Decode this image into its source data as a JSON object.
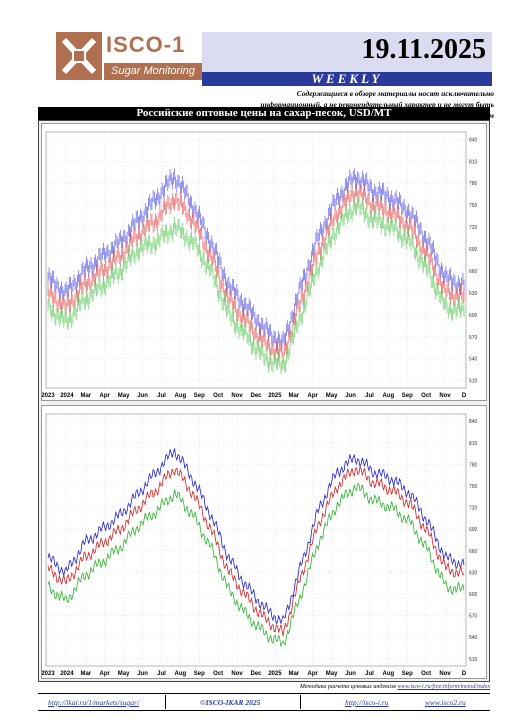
{
  "header": {
    "logo_name": "ISCO-1",
    "logo_sub": "Sugar Monitoring",
    "date": "19.11.2025",
    "weekly": "WEEKLY",
    "disclaimer": "Содержащиеся в обзоре материалы носят исключительно информационный, а не рекомендательный характер и не могут быть переданы третьим лицам"
  },
  "section_title": "Российские оптовые цены на сахар-песок, USD/MT",
  "chart_data": [
    {
      "type": "line",
      "panel": "top",
      "style": "bands",
      "x_labels": [
        "2023",
        "2024",
        "Mar",
        "Apr",
        "May",
        "Jun",
        "Jul",
        "Aug",
        "Sep",
        "Oct",
        "Nov",
        "Dec",
        "2025",
        "Mar",
        "Apr",
        "May",
        "Jun",
        "Jul",
        "Aug",
        "Sep",
        "Oct",
        "Nov",
        "D"
      ],
      "y_ticks": [
        510,
        540,
        570,
        600,
        630,
        660,
        690,
        720,
        750,
        780,
        810,
        840
      ],
      "ylim": [
        500,
        850
      ],
      "series": [
        {
          "color": "#3030e0",
          "values": [
            650,
            630,
            660,
            680,
            700,
            730,
            760,
            790,
            750,
            700,
            640,
            610,
            580,
            560,
            640,
            710,
            760,
            790,
            770,
            760,
            740,
            700,
            650,
            640
          ]
        },
        {
          "color": "#e03030",
          "values": [
            630,
            610,
            640,
            660,
            680,
            710,
            730,
            760,
            730,
            680,
            620,
            590,
            560,
            545,
            620,
            690,
            740,
            770,
            750,
            740,
            720,
            680,
            630,
            625
          ]
        },
        {
          "color": "#40c040",
          "values": [
            610,
            590,
            620,
            640,
            660,
            690,
            700,
            720,
            700,
            660,
            600,
            570,
            540,
            530,
            600,
            670,
            720,
            750,
            730,
            720,
            700,
            660,
            610,
            605
          ]
        }
      ]
    },
    {
      "type": "line",
      "panel": "bottom",
      "style": "lines",
      "x_labels": [
        "2023",
        "2024",
        "Mar",
        "Apr",
        "May",
        "Jun",
        "Jul",
        "Aug",
        "Sep",
        "Oct",
        "Nov",
        "Dec",
        "2025",
        "Mar",
        "Apr",
        "May",
        "Jun",
        "Jul",
        "Aug",
        "Sep",
        "Oct",
        "Nov",
        "D"
      ],
      "y_ticks": [
        510,
        540,
        570,
        600,
        630,
        660,
        690,
        720,
        750,
        780,
        810,
        840
      ],
      "ylim": [
        500,
        850
      ],
      "series": [
        {
          "color": "#2020d0",
          "values": [
            650,
            630,
            670,
            690,
            710,
            740,
            770,
            800,
            760,
            710,
            650,
            610,
            580,
            560,
            640,
            720,
            770,
            790,
            770,
            760,
            740,
            700,
            650,
            640
          ]
        },
        {
          "color": "#d02020",
          "values": [
            635,
            615,
            650,
            670,
            690,
            720,
            745,
            775,
            740,
            690,
            630,
            595,
            565,
            545,
            625,
            700,
            750,
            775,
            755,
            745,
            725,
            685,
            635,
            628
          ]
        },
        {
          "color": "#30b030",
          "values": [
            610,
            590,
            625,
            645,
            665,
            695,
            715,
            740,
            710,
            665,
            605,
            570,
            545,
            530,
            600,
            675,
            725,
            750,
            730,
            720,
            700,
            660,
            610,
            605
          ]
        }
      ]
    }
  ],
  "footer": {
    "source_prefix": "Методика расчета ценовых индексов",
    "source_url": "www.isco-i.ru/free/inform/metod/index",
    "link_left": "http://ikar.ru/1/markets/sugar/",
    "copyright": "©ISCO-IKAR 2025",
    "link_r1": "http://isco-i.ru",
    "link_r2": "www.isco2.ru"
  }
}
